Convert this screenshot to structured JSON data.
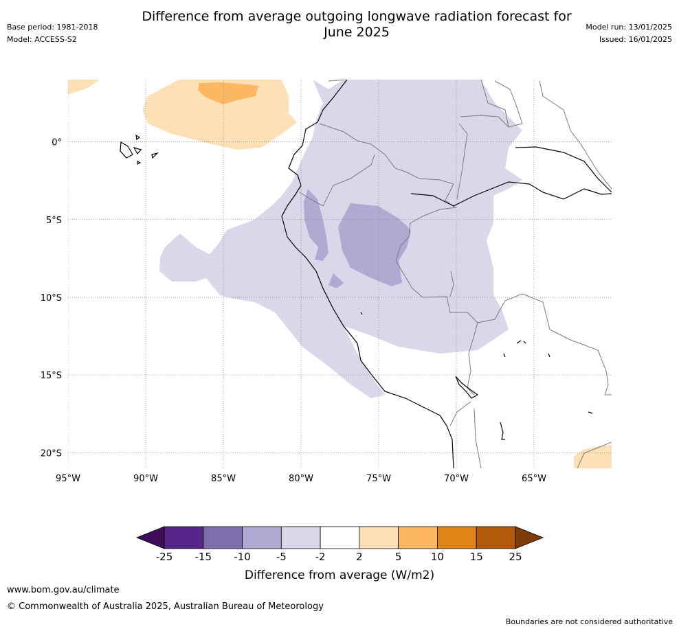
{
  "header": {
    "title_line1": "Difference from average outgoing longwave radiation forecast for",
    "title_line2": "June 2025",
    "base_period": "Base period: 1981-2018",
    "model": "Model: ACCESS-S2",
    "model_run": "Model run: 13/01/2025",
    "issued": "Issued: 16/01/2025"
  },
  "map": {
    "lon_range": [
      -95,
      -60
    ],
    "lat_range": [
      -21,
      4
    ],
    "lon_gridlines": [
      -95,
      -90,
      -85,
      -80,
      -75,
      -70,
      -65
    ],
    "lat_gridlines": [
      0,
      -5,
      -10,
      -15,
      -20
    ],
    "lon_labels": [
      "95°W",
      "90°W",
      "85°W",
      "80°W",
      "75°W",
      "70°W",
      "65°W"
    ],
    "lat_labels": [
      "0°",
      "5°S",
      "10°S",
      "15°S",
      "20°S"
    ],
    "colors": {
      "coast": "#000000",
      "border": "#7a7a7a",
      "grid": "#888888",
      "neg_5_2": "#d8d8ea",
      "neg_10_5": "#b0aad2",
      "pos_2_5": "#fde0b6",
      "pos_5_10": "#fcb762"
    }
  },
  "colorbar": {
    "title": "Difference from average (W/m2)",
    "labels": [
      "-25",
      "-15",
      "-10",
      "-5",
      "-2",
      "2",
      "5",
      "10",
      "15",
      "25"
    ],
    "colors": [
      "#3e0b5a",
      "#56258a",
      "#7e6eab",
      "#b0aad2",
      "#d8d8ea",
      "#ffffff",
      "#fde0b6",
      "#fcb762",
      "#e08418",
      "#b3590a",
      "#7f3b08"
    ]
  },
  "footer": {
    "link": "www.bom.gov.au/climate",
    "copyright": "© Commonwealth of Australia 2025, Australian Bureau of Meteorology",
    "note": "Boundaries are not considered authoritative"
  }
}
